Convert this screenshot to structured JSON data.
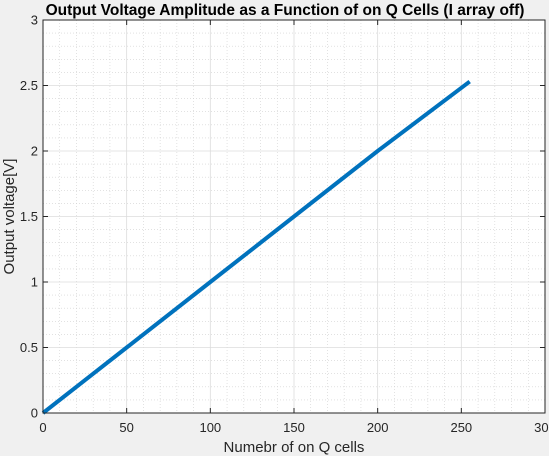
{
  "figure": {
    "background": "#f0f0f0",
    "axes_background": "#ffffff"
  },
  "chart_data": {
    "type": "line",
    "title": "Output Voltage Amplitude as a Function of on Q Cells (I array off)",
    "xlabel": "Numebr of on Q cells",
    "ylabel": "Output voltage[V]",
    "xlim": [
      0,
      300
    ],
    "ylim": [
      0,
      3
    ],
    "xticks": [
      0,
      50,
      100,
      150,
      200,
      250,
      300
    ],
    "xtick_labels": [
      "0",
      "50",
      "100",
      "150",
      "200",
      "250",
      "300"
    ],
    "yticks": [
      0,
      0.5,
      1,
      1.5,
      2,
      2.5,
      3
    ],
    "ytick_labels": [
      "0",
      "0.5",
      "1",
      "1.5",
      "2",
      "2.5",
      "3"
    ],
    "grid": true,
    "minor_grid": true,
    "series": [
      {
        "color": "#0072bd",
        "x": [
          0,
          50,
          100,
          150,
          200,
          255
        ],
        "y": [
          0,
          0.5,
          1.0,
          1.5,
          2.0,
          2.53
        ]
      }
    ]
  }
}
